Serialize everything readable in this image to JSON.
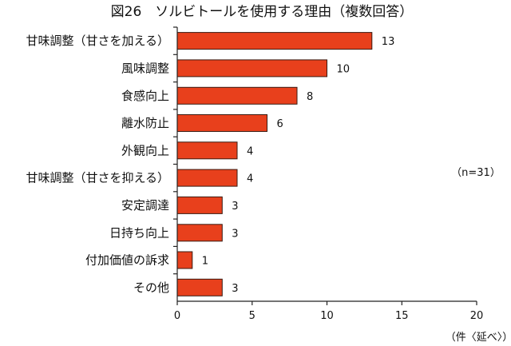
{
  "chart_data": {
    "type": "bar",
    "orientation": "horizontal",
    "title": "図26　ソルビトールを使用する理由（複数回答）",
    "categories": [
      "甘味調整（甘さを加える）",
      "風味調整",
      "食感向上",
      "離水防止",
      "外観向上",
      "甘味調整（甘さを抑える）",
      "安定調達",
      "日持ち向上",
      "付加価値の訴求",
      "その他"
    ],
    "values": [
      13,
      10,
      8,
      6,
      4,
      4,
      3,
      3,
      1,
      3
    ],
    "xlim": [
      0,
      20
    ],
    "xticks": [
      0,
      5,
      10,
      15,
      20
    ],
    "xlabel": "（件〈延べ〉）",
    "annotation": "（n=31）",
    "bar_color": "#e8401c",
    "grid": false
  }
}
